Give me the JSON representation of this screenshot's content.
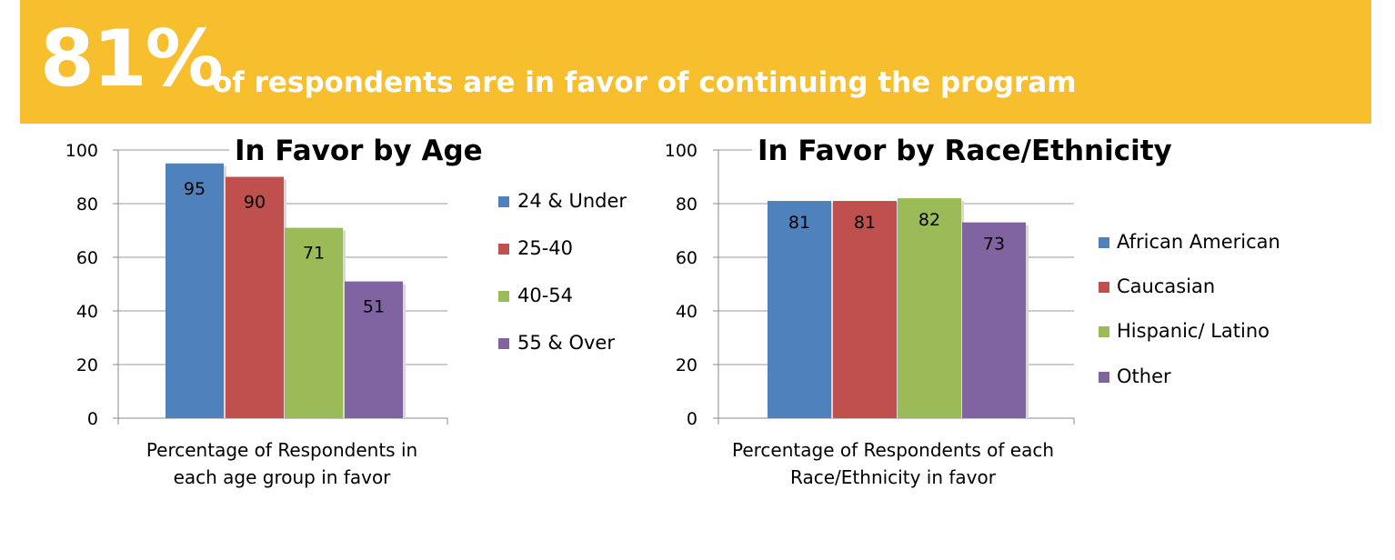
{
  "header": {
    "headline_pct": "81%",
    "headline_text": "of respondents are in favor of continuing the program",
    "background": "#F7BE2D"
  },
  "chart_data": [
    {
      "type": "bar",
      "title": "In Favor by Age",
      "xlabel": [
        "Percentage of Respondents in",
        "each age group in favor"
      ],
      "ylabel": "",
      "ylim": [
        0,
        100
      ],
      "yticks": [
        0,
        20,
        40,
        60,
        80,
        100
      ],
      "grid": true,
      "legend_position": "right",
      "series": [
        {
          "name": "24 & Under",
          "values": [
            95
          ],
          "color": "#4F81BD"
        },
        {
          "name": "25-40",
          "values": [
            90
          ],
          "color": "#C0504D"
        },
        {
          "name": "40-54",
          "values": [
            71
          ],
          "color": "#9BBB59"
        },
        {
          "name": "55 & Over",
          "values": [
            51
          ],
          "color": "#8064A2"
        }
      ]
    },
    {
      "type": "bar",
      "title": "In Favor by Race/Ethnicity",
      "xlabel": [
        "Percentage of Respondents of each",
        "Race/Ethnicity in favor"
      ],
      "ylabel": "",
      "ylim": [
        0,
        100
      ],
      "yticks": [
        0,
        20,
        40,
        60,
        80,
        100
      ],
      "grid": true,
      "legend_position": "right",
      "series": [
        {
          "name": "African American",
          "values": [
            81
          ],
          "color": "#4F81BD"
        },
        {
          "name": "Caucasian",
          "values": [
            81
          ],
          "color": "#C0504D"
        },
        {
          "name": "Hispanic/ Latino",
          "values": [
            82
          ],
          "color": "#9BBB59"
        },
        {
          "name": "Other",
          "values": [
            73
          ],
          "color": "#8064A2"
        }
      ]
    }
  ]
}
